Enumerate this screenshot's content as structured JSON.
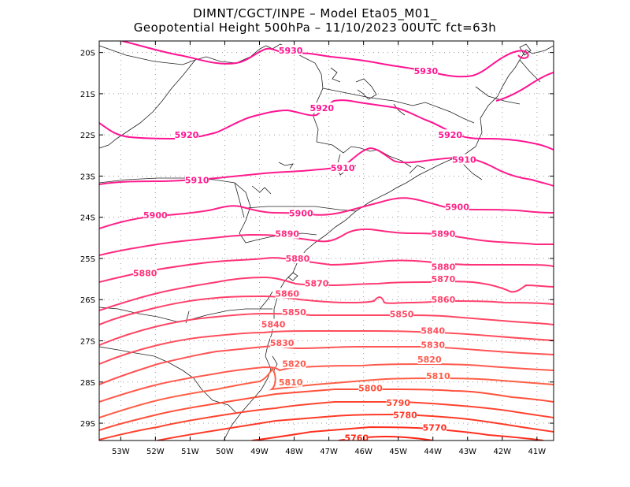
{
  "title": {
    "line1": "DIMNT/CGCT/INPE –   Model Eta05_M01_",
    "line2": "Geopotential Height 500hPa –   11/10/2023 00UTC fct=63h"
  },
  "axes": {
    "lon_labels": [
      "53W",
      "52W",
      "51W",
      "50W",
      "49W",
      "48W",
      "47W",
      "46W",
      "45W",
      "44W",
      "43W",
      "42W",
      "41W"
    ],
    "lat_labels": [
      "20S",
      "21S",
      "22S",
      "23S",
      "24S",
      "25S",
      "26S",
      "27S",
      "28S",
      "29S"
    ]
  },
  "contours": [
    {
      "value": 5930,
      "label": "5930",
      "color": "#ff1493",
      "label_positions": [
        [
          -48.1,
          -19.95
        ],
        [
          -44.2,
          -20.45
        ]
      ]
    },
    {
      "value": 5920,
      "label": "5920",
      "color": "#ff1493",
      "label_positions": [
        [
          -51.1,
          -22.0
        ],
        [
          -47.2,
          -21.35
        ],
        [
          -43.5,
          -22.0
        ]
      ]
    },
    {
      "value": 5910,
      "label": "5910",
      "color": "#ff1b8d",
      "label_positions": [
        [
          -50.8,
          -23.1
        ],
        [
          -46.6,
          -22.8
        ],
        [
          -43.1,
          -22.6
        ]
      ]
    },
    {
      "value": 5900,
      "label": "5900",
      "color": "#ff2287",
      "label_positions": [
        [
          -52.0,
          -23.95
        ],
        [
          -47.8,
          -23.9
        ],
        [
          -43.3,
          -23.75
        ]
      ]
    },
    {
      "value": 5890,
      "label": "5890",
      "color": "#ff2a80",
      "label_positions": [
        [
          -48.2,
          -24.4
        ],
        [
          -43.7,
          -24.4
        ]
      ]
    },
    {
      "value": 5880,
      "label": "5880",
      "color": "#ff3179",
      "label_positions": [
        [
          -52.3,
          -25.35
        ],
        [
          -47.9,
          -25.0
        ],
        [
          -43.7,
          -25.2
        ]
      ]
    },
    {
      "value": 5870,
      "label": "5870",
      "color": "#ff3972",
      "label_positions": [
        [
          -47.35,
          -25.6
        ],
        [
          -43.7,
          -25.5
        ]
      ]
    },
    {
      "value": 5860,
      "label": "5860",
      "color": "#ff416b",
      "label_positions": [
        [
          -48.2,
          -25.85
        ],
        [
          -43.7,
          -26.0
        ]
      ]
    },
    {
      "value": 5850,
      "label": "5850",
      "color": "#ff4764",
      "label_positions": [
        [
          -48.0,
          -26.3
        ],
        [
          -44.9,
          -26.35
        ]
      ]
    },
    {
      "value": 5840,
      "label": "5840",
      "color": "#ff4e5c",
      "label_positions": [
        [
          -48.6,
          -26.6
        ],
        [
          -44.0,
          -26.75
        ]
      ]
    },
    {
      "value": 5830,
      "label": "5830",
      "color": "#ff5455",
      "label_positions": [
        [
          -48.35,
          -27.05
        ],
        [
          -44.0,
          -27.1
        ]
      ]
    },
    {
      "value": 5820,
      "label": "5820",
      "color": "#ff5a4e",
      "label_positions": [
        [
          -48.0,
          -27.55
        ],
        [
          -44.1,
          -27.45
        ]
      ]
    },
    {
      "value": 5810,
      "label": "5810",
      "color": "#ff5f46",
      "label_positions": [
        [
          -48.1,
          -28.0
        ],
        [
          -43.85,
          -27.85
        ]
      ]
    },
    {
      "value": 5800,
      "label": "5800",
      "color": "#ff503a",
      "label_positions": [
        [
          -45.8,
          -28.15
        ]
      ]
    },
    {
      "value": 5790,
      "label": "5790",
      "color": "#ff4430",
      "label_positions": [
        [
          -45.0,
          -28.5
        ]
      ]
    },
    {
      "value": 5780,
      "label": "5780",
      "color": "#ff3a28",
      "label_positions": [
        [
          -44.8,
          -28.8
        ]
      ]
    },
    {
      "value": 5770,
      "label": "5770",
      "color": "#ff3020",
      "label_positions": [
        [
          -43.95,
          -29.1
        ]
      ]
    },
    {
      "value": 5760,
      "label": "5760",
      "color": "#ff2818",
      "label_positions": [
        [
          -46.2,
          -29.35
        ]
      ]
    }
  ]
}
